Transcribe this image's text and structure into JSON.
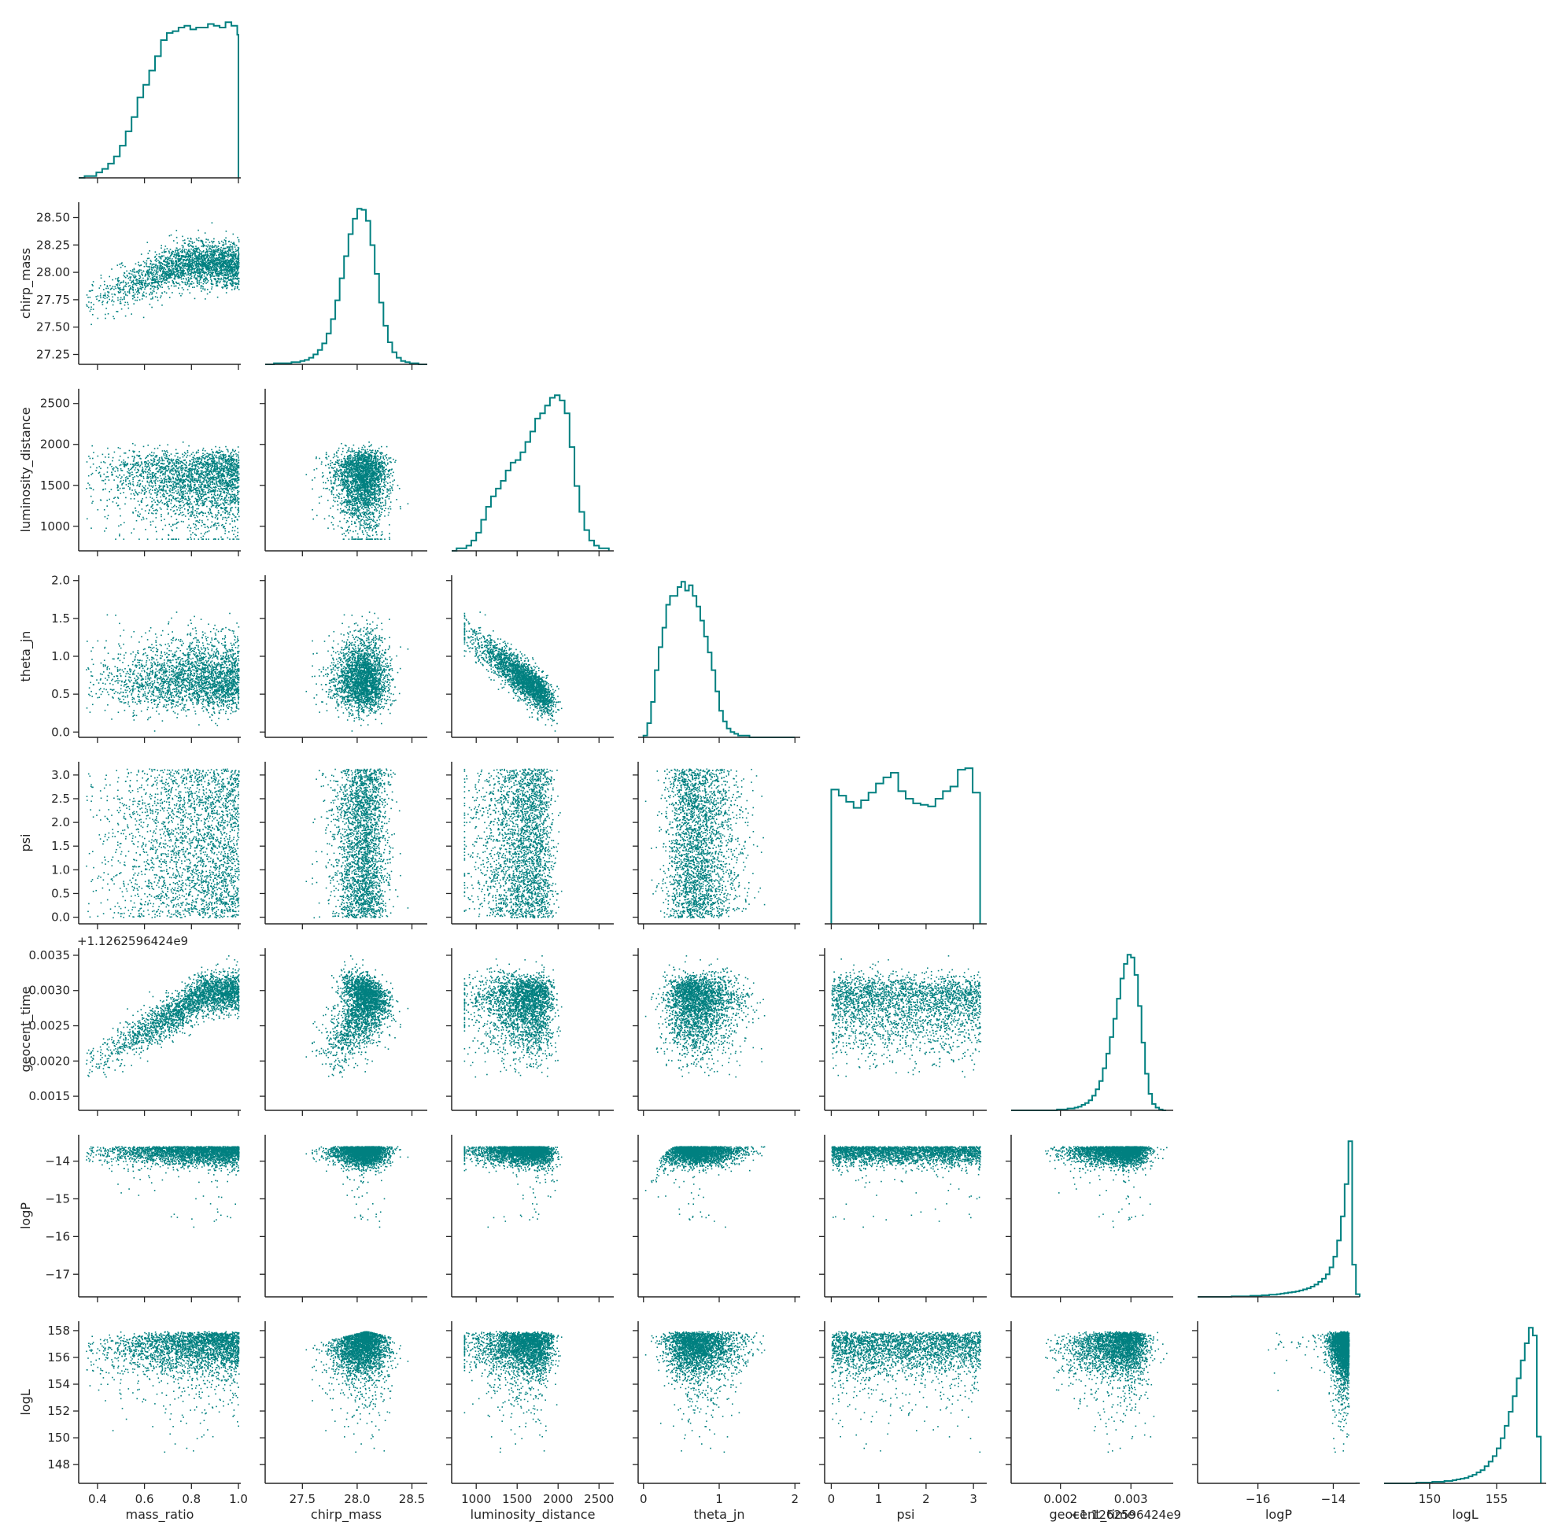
{
  "chart_data": {
    "type": "corner",
    "description_free": true,
    "color": "#008080",
    "variables": [
      "mass_ratio",
      "chirp_mass",
      "luminosity_distance",
      "theta_jn",
      "psi",
      "geocent_time",
      "logP",
      "logL"
    ],
    "offset_text": "+1.1262596424e9",
    "axes": [
      {
        "name": "mass_ratio",
        "range": [
          0.32,
          1.01
        ],
        "ticks": [
          0.4,
          0.6,
          0.8,
          1.0
        ],
        "tick_labels": [
          "0.4",
          "0.6",
          "0.8",
          "1.0"
        ]
      },
      {
        "name": "chirp_mass",
        "range": [
          27.16,
          28.64
        ],
        "ticks": [
          27.25,
          27.5,
          27.75,
          28.0,
          28.25,
          28.5
        ],
        "tick_labels": [
          "27.25",
          "27.50",
          "27.75",
          "28.00",
          "28.25",
          "28.50"
        ],
        "x_ticks": [
          27.5,
          28.0,
          28.5
        ],
        "x_tick_labels": [
          "27.5",
          "28.0",
          "28.5"
        ]
      },
      {
        "name": "luminosity_distance",
        "range": [
          700,
          2680
        ],
        "ticks": [
          1000,
          1500,
          2000,
          2500
        ],
        "tick_labels": [
          "1000",
          "1500",
          "2000",
          "2500"
        ]
      },
      {
        "name": "theta_jn",
        "range": [
          -0.07,
          2.07
        ],
        "ticks": [
          0.0,
          0.5,
          1.0,
          1.5,
          2.0
        ],
        "tick_labels": [
          "0.0",
          "0.5",
          "1.0",
          "1.5",
          "2.0"
        ],
        "x_ticks": [
          0,
          1,
          2
        ],
        "x_tick_labels": [
          "0",
          "1",
          "2"
        ]
      },
      {
        "name": "psi",
        "range": [
          -0.14,
          3.28
        ],
        "ticks": [
          0.0,
          0.5,
          1.0,
          1.5,
          2.0,
          2.5,
          3.0
        ],
        "tick_labels": [
          "0.0",
          "0.5",
          "1.0",
          "1.5",
          "2.0",
          "2.5",
          "3.0"
        ],
        "x_ticks": [
          0,
          1,
          2,
          3
        ],
        "x_tick_labels": [
          "0",
          "1",
          "2",
          "3"
        ]
      },
      {
        "name": "geocent_time",
        "range": [
          0.0013,
          0.0036
        ],
        "ticks": [
          0.0015,
          0.002,
          0.0025,
          0.003,
          0.0035
        ],
        "tick_labels": [
          "0.0015",
          "0.0020",
          "0.0025",
          "0.0030",
          "0.0035"
        ],
        "x_ticks": [
          0.002,
          0.003
        ],
        "x_tick_labels": [
          "0.002",
          "0.003"
        ]
      },
      {
        "name": "logP",
        "range": [
          -17.6,
          -13.3
        ],
        "ticks": [
          -17,
          -16,
          -15,
          -14
        ],
        "tick_labels": [
          "−17",
          "−16",
          "−15",
          "−14"
        ],
        "x_ticks": [
          -16,
          -14
        ],
        "x_tick_labels": [
          "−16",
          "−14"
        ]
      },
      {
        "name": "logL",
        "range": [
          146.6,
          158.7
        ],
        "ticks": [
          148,
          150,
          152,
          154,
          156,
          158
        ],
        "tick_labels": [
          "148",
          "150",
          "152",
          "154",
          "156",
          "158"
        ],
        "x_ticks": [
          150,
          155
        ],
        "x_tick_labels": [
          "150",
          "155"
        ]
      }
    ],
    "histograms": [
      {
        "variable": "mass_ratio",
        "bin_edges": [
          0.32,
          0.345,
          0.37,
          0.395,
          0.42,
          0.445,
          0.47,
          0.495,
          0.52,
          0.545,
          0.57,
          0.595,
          0.62,
          0.645,
          0.67,
          0.695,
          0.72,
          0.745,
          0.77,
          0.795,
          0.82,
          0.845,
          0.87,
          0.895,
          0.92,
          0.945,
          0.97,
          0.995,
          1.0
        ],
        "counts": [
          0,
          1,
          1,
          3,
          5,
          8,
          12,
          18,
          26,
          34,
          45,
          52,
          60,
          68,
          77,
          81,
          82,
          84,
          85,
          83,
          84,
          84,
          86,
          85,
          84,
          87,
          85,
          80,
          0
        ]
      },
      {
        "variable": "chirp_mass",
        "bin_edges": [
          27.16,
          27.2,
          27.24,
          27.28,
          27.32,
          27.36,
          27.4,
          27.44,
          27.48,
          27.52,
          27.56,
          27.6,
          27.64,
          27.68,
          27.72,
          27.76,
          27.8,
          27.84,
          27.88,
          27.92,
          27.96,
          28.0,
          28.04,
          28.08,
          28.12,
          28.16,
          28.2,
          28.24,
          28.28,
          28.32,
          28.36,
          28.4,
          28.44,
          28.48,
          28.52,
          28.56,
          28.6,
          28.64
        ],
        "counts": [
          0,
          0,
          1,
          1,
          1,
          1,
          2,
          2,
          3,
          4,
          6,
          9,
          13,
          19,
          28,
          41,
          58,
          78,
          98,
          118,
          132,
          141,
          140,
          130,
          108,
          82,
          56,
          35,
          20,
          11,
          6,
          3,
          2,
          1,
          1,
          0,
          0
        ]
      },
      {
        "variable": "luminosity_distance",
        "bin_edges": [
          700,
          760,
          820,
          880,
          940,
          1000,
          1060,
          1120,
          1180,
          1240,
          1300,
          1360,
          1420,
          1480,
          1540,
          1600,
          1660,
          1720,
          1780,
          1840,
          1900,
          1960,
          2020,
          2080,
          2140,
          2200,
          2260,
          2320,
          2380,
          2440,
          2500,
          2560,
          2620
        ],
        "counts": [
          0,
          1,
          1,
          2,
          4,
          7,
          12,
          17,
          21,
          24,
          27,
          31,
          34,
          35,
          38,
          42,
          46,
          51,
          53,
          56,
          59,
          60,
          58,
          53,
          40,
          25,
          15,
          8,
          4,
          2,
          1,
          1
        ]
      },
      {
        "variable": "theta_jn",
        "bin_edges": [
          0.0,
          0.05,
          0.1,
          0.15,
          0.2,
          0.25,
          0.3,
          0.35,
          0.4,
          0.45,
          0.5,
          0.55,
          0.6,
          0.65,
          0.7,
          0.75,
          0.8,
          0.85,
          0.9,
          0.95,
          1.0,
          1.05,
          1.1,
          1.15,
          1.2,
          1.25,
          1.3,
          1.35,
          1.4,
          1.45,
          1.5,
          1.55,
          1.6,
          1.65,
          1.7,
          1.75,
          1.8,
          1.85,
          1.9,
          1.95,
          2.0
        ],
        "counts": [
          1,
          8,
          20,
          38,
          51,
          62,
          75,
          80,
          80,
          85,
          88,
          83,
          86,
          80,
          74,
          66,
          57,
          48,
          38,
          26,
          15,
          9,
          5,
          3,
          2,
          1,
          1,
          1,
          0,
          0,
          0,
          0,
          0,
          0,
          0,
          0,
          0,
          0,
          0,
          0
        ]
      },
      {
        "variable": "psi",
        "bin_edges": [
          0.0,
          0.157,
          0.314,
          0.471,
          0.628,
          0.785,
          0.942,
          1.099,
          1.256,
          1.413,
          1.57,
          1.727,
          1.884,
          2.041,
          2.198,
          2.355,
          2.512,
          2.669,
          2.826,
          2.983,
          3.14
        ],
        "counts": [
          88,
          84,
          80,
          76,
          81,
          86,
          92,
          96,
          99,
          87,
          82,
          79,
          78,
          77,
          82,
          87,
          90,
          101,
          102,
          86
        ]
      },
      {
        "variable": "geocent_time",
        "bin_edges": [
          0.0013,
          0.00135,
          0.0014,
          0.00145,
          0.0015,
          0.00155,
          0.0016,
          0.00165,
          0.0017,
          0.00175,
          0.0018,
          0.00185,
          0.0019,
          0.00195,
          0.002,
          0.00205,
          0.0021,
          0.00215,
          0.0022,
          0.00225,
          0.0023,
          0.00235,
          0.0024,
          0.00245,
          0.0025,
          0.00255,
          0.0026,
          0.00265,
          0.0027,
          0.00275,
          0.0028,
          0.00285,
          0.0029,
          0.00295,
          0.003,
          0.00305,
          0.0031,
          0.00315,
          0.0032,
          0.00325,
          0.0033,
          0.00335,
          0.0034,
          0.00345,
          0.0035
        ],
        "counts": [
          0,
          0,
          0,
          0,
          0,
          0,
          0,
          0,
          0,
          0,
          0,
          0,
          0,
          1,
          1,
          1,
          2,
          2,
          3,
          4,
          6,
          8,
          11,
          16,
          23,
          32,
          46,
          62,
          80,
          100,
          122,
          144,
          160,
          170,
          167,
          148,
          114,
          74,
          40,
          18,
          7,
          3,
          1,
          0
        ]
      },
      {
        "variable": "logP",
        "bin_edges": [
          -17.6,
          -17.5,
          -17.4,
          -17.3,
          -17.2,
          -17.1,
          -17.0,
          -16.9,
          -16.8,
          -16.7,
          -16.6,
          -16.5,
          -16.4,
          -16.3,
          -16.2,
          -16.1,
          -16.0,
          -15.9,
          -15.8,
          -15.7,
          -15.6,
          -15.5,
          -15.4,
          -15.3,
          -15.2,
          -15.1,
          -15.0,
          -14.9,
          -14.8,
          -14.7,
          -14.6,
          -14.5,
          -14.4,
          -14.3,
          -14.2,
          -14.1,
          -14.0,
          -13.9,
          -13.8,
          -13.7,
          -13.6,
          -13.5,
          -13.4,
          -13.3
        ],
        "counts": [
          0,
          0,
          0,
          0,
          0,
          0,
          0,
          0,
          0,
          1,
          1,
          1,
          1,
          1,
          2,
          2,
          2,
          3,
          3,
          4,
          4,
          5,
          6,
          7,
          8,
          9,
          10,
          12,
          14,
          16,
          19,
          23,
          28,
          34,
          42,
          55,
          75,
          105,
          150,
          210,
          290,
          60,
          5
        ]
      },
      {
        "variable": "logL",
        "bin_edges": [
          146.6,
          146.9,
          147.2,
          147.5,
          147.8,
          148.1,
          148.4,
          148.7,
          149.0,
          149.3,
          149.6,
          149.9,
          150.2,
          150.5,
          150.8,
          151.1,
          151.4,
          151.7,
          152.0,
          152.3,
          152.6,
          152.9,
          153.2,
          153.5,
          153.8,
          154.1,
          154.4,
          154.7,
          155.0,
          155.3,
          155.6,
          155.9,
          156.2,
          156.5,
          156.8,
          157.1,
          157.4,
          157.7,
          158.0,
          158.3
        ],
        "counts": [
          0,
          0,
          0,
          0,
          0,
          0,
          0,
          0,
          1,
          1,
          1,
          1,
          2,
          2,
          2,
          3,
          3,
          4,
          5,
          6,
          7,
          9,
          11,
          14,
          17,
          22,
          28,
          35,
          45,
          58,
          74,
          92,
          112,
          135,
          158,
          180,
          200,
          190,
          60
        ]
      }
    ]
  }
}
